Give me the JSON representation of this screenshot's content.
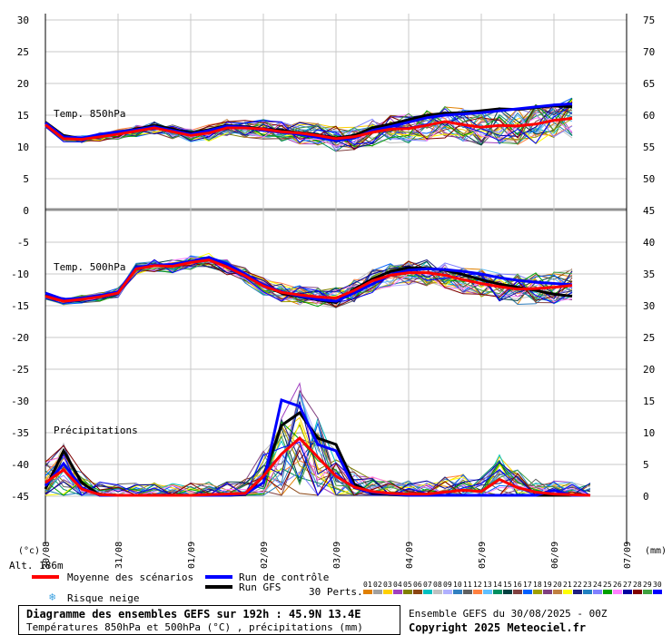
{
  "chart_data": [
    {
      "type": "line",
      "title": "Temp. 850hPa",
      "unit": "°C",
      "left_axis": {
        "ticks": [
          30,
          25,
          20,
          15,
          10,
          5,
          0
        ]
      },
      "right_axis": {
        "ticks": [
          75,
          70,
          65,
          60,
          55,
          50,
          45
        ]
      },
      "x_labels": [
        "30/08",
        "31/08",
        "01/09",
        "02/09",
        "03/09",
        "04/09",
        "05/09",
        "06/09",
        "07/09"
      ],
      "x_step_hours": 6,
      "series": [
        {
          "name": "Moyenne des scénarios",
          "color": "#ff0000",
          "values": [
            13.5,
            11.3,
            11.2,
            11.6,
            12,
            12.5,
            13,
            12.4,
            11.8,
            12.2,
            13,
            13,
            12.8,
            12.4,
            12.2,
            11.8,
            11.3,
            11.6,
            12.3,
            12.8,
            12.9,
            13.4,
            14,
            13.5,
            13.1,
            13.4,
            13.3,
            13.6,
            14.2,
            14.5
          ]
        },
        {
          "name": "Run de contrôle",
          "color": "#0000ff",
          "values": [
            13.8,
            11.6,
            11.4,
            12,
            12.4,
            12.7,
            13.2,
            12.6,
            12,
            12.6,
            13.3,
            13.1,
            12.6,
            12.3,
            12,
            11.5,
            11,
            11.4,
            12.6,
            13.2,
            13.9,
            14.6,
            15,
            15.2,
            15.4,
            15.7,
            16,
            16.3,
            16.6,
            16.8
          ]
        },
        {
          "name": "Run GFS",
          "color": "#000000",
          "values": [
            13.9,
            11.8,
            11.3,
            11.8,
            12.3,
            12.8,
            13.4,
            12.8,
            12.2,
            12.7,
            13.4,
            13.2,
            12.8,
            12.6,
            12.2,
            11.9,
            11.4,
            11.8,
            13,
            13.6,
            14.3,
            15,
            15.3,
            15.4,
            15.7,
            16,
            15.9,
            16.2,
            16.5,
            16.3
          ]
        }
      ]
    },
    {
      "type": "line",
      "title": "Temp. 500hPa",
      "unit": "°C",
      "left_axis": {
        "ticks": [
          -5,
          -10,
          -15,
          -20,
          -25,
          -30,
          -35,
          -40,
          -45
        ]
      },
      "x_labels": [
        "30/08",
        "31/08",
        "01/09",
        "02/09",
        "03/09",
        "04/09",
        "05/09",
        "06/09",
        "07/09"
      ],
      "x_step_hours": 6,
      "series": [
        {
          "name": "Moyenne des scénarios",
          "color": "#ff0000",
          "values": [
            -13.5,
            -14.3,
            -14,
            -13.6,
            -13,
            -9.2,
            -8.7,
            -8.8,
            -8.2,
            -7.8,
            -8.9,
            -10.3,
            -11.9,
            -12.9,
            -13.3,
            -13.6,
            -13.8,
            -12.6,
            -11.1,
            -10.2,
            -9.8,
            -9.8,
            -10.2,
            -10.9,
            -11.5,
            -12,
            -12.4,
            -12.3,
            -12.1,
            -11.8
          ]
        },
        {
          "name": "Run de contrôle",
          "color": "#0000ff",
          "values": [
            -13,
            -14,
            -13.8,
            -13.4,
            -12.8,
            -9,
            -8.6,
            -8.5,
            -8,
            -7.4,
            -8.4,
            -10,
            -11.7,
            -12.8,
            -13.5,
            -14,
            -14.3,
            -13,
            -11.6,
            -10.2,
            -9.4,
            -9.2,
            -9.3,
            -9.6,
            -10,
            -10.6,
            -11,
            -11.3,
            -11.5,
            -11.7
          ]
        },
        {
          "name": "Run GFS",
          "color": "#000000",
          "values": [
            -13.2,
            -14.1,
            -13.9,
            -13.5,
            -12.9,
            -9.1,
            -8.7,
            -8.6,
            -8.1,
            -7.5,
            -8.5,
            -10.2,
            -11.8,
            -13,
            -13.6,
            -14.1,
            -14.5,
            -12.4,
            -10.8,
            -9.6,
            -9,
            -9.1,
            -9.4,
            -10.1,
            -10.9,
            -11.6,
            -12.1,
            -12.6,
            -13.2,
            -13.5
          ]
        }
      ]
    },
    {
      "type": "line",
      "title": "Précipitations",
      "unit": "mm",
      "right_axis": {
        "ticks": [
          40,
          35,
          30,
          25,
          20,
          15,
          10,
          5,
          0
        ]
      },
      "x_labels": [
        "30/08",
        "31/08",
        "01/09",
        "02/09",
        "03/09",
        "04/09",
        "05/09",
        "06/09",
        "07/09"
      ],
      "x_step_hours": 6,
      "series": [
        {
          "name": "Moyenne des scénarios",
          "color": "#ff0000",
          "values": [
            2,
            4,
            1,
            0.1,
            0,
            0,
            0,
            0,
            0,
            0.1,
            0.2,
            0.3,
            3,
            6.5,
            9,
            6,
            3,
            1.3,
            0.6,
            0.3,
            0.2,
            0.2,
            0.5,
            0.8,
            0.6,
            2.5,
            1.2,
            0.5,
            0.2,
            0.1,
            0
          ]
        },
        {
          "name": "Run de contrôle",
          "color": "#0000ff",
          "values": [
            1.5,
            5,
            1.2,
            0,
            0,
            0,
            0,
            0,
            0,
            0,
            0,
            0.2,
            2,
            15,
            14,
            8,
            7,
            1.2,
            0.5,
            0.2,
            0,
            0,
            0,
            0,
            0,
            0,
            0,
            0,
            0.8,
            0,
            0
          ]
        },
        {
          "name": "Run GFS",
          "color": "#000000",
          "values": [
            1,
            7,
            2,
            0,
            0,
            0,
            0,
            0,
            0,
            0,
            0,
            0.1,
            3,
            11,
            13,
            9,
            8,
            1.8,
            0.3,
            0.1,
            0,
            0,
            0,
            0,
            0,
            0,
            0,
            0,
            0,
            0,
            0
          ]
        }
      ]
    }
  ],
  "labels": {
    "unit_left": "(°c)",
    "unit_right": "(mm)",
    "altitude": "Alt. 186m",
    "moyenne": "Moyenne des scénarios",
    "controle": "Run de contrôle",
    "gfs": "Run GFS",
    "neige": "Risque neige",
    "perts": "30 Perts.",
    "pert_numbers": [
      "01",
      "02",
      "03",
      "04",
      "05",
      "06",
      "07",
      "08",
      "09",
      "10",
      "11",
      "12",
      "13",
      "14",
      "15",
      "16",
      "17",
      "18",
      "19",
      "20",
      "21",
      "22",
      "23",
      "24",
      "25",
      "26",
      "27",
      "28",
      "29",
      "30"
    ],
    "pert_colors": [
      "#e08000",
      "#a0a0a0",
      "#ffd000",
      "#a040c0",
      "#808000",
      "#8b4513",
      "#00c0c0",
      "#c0c0c0",
      "#b0b0ff",
      "#3080c0",
      "#606060",
      "#ff8040",
      "#60c0ff",
      "#009060",
      "#004040",
      "#804040",
      "#0060ff",
      "#a0a000",
      "#804080",
      "#c08040",
      "#ffff00",
      "#202080",
      "#2080c0",
      "#8080ff",
      "#00a000",
      "#ff80ff",
      "#0000a0",
      "#800000",
      "#40a040",
      "#0000ff"
    ],
    "footer_title": "Diagramme des ensembles GEFS sur 192h : 45.9N 13.4E",
    "footer_sub": "Températures 850hPa et 500hPa (°C) , précipitations (mm)",
    "ensemble": "Ensemble GEFS du 30/08/2025 - 00Z",
    "copyright": "Copyright 2025 Meteociel.fr"
  },
  "colors": {
    "mean": "#ff0000",
    "control": "#0000ff",
    "gfs": "#000000",
    "snow": "#3aa0e0"
  }
}
